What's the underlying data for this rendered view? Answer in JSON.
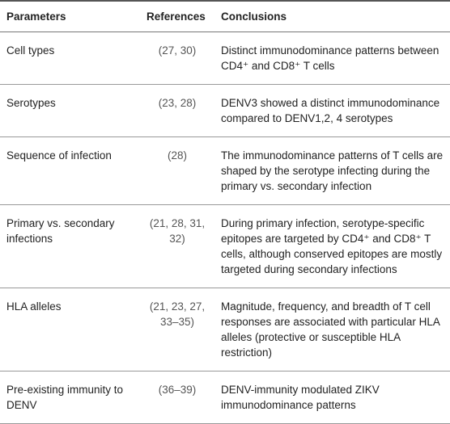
{
  "table": {
    "header": [
      "Parameters",
      "References",
      "Conclusions"
    ],
    "rows": [
      [
        "Cell types",
        "(27, 30)",
        "Distinct immunodominance patterns between CD4⁺ and CD8⁺ T cells"
      ],
      [
        "Serotypes",
        "(23, 28)",
        "DENV3 showed a distinct immunodominance compared to DENV1,2, 4 serotypes"
      ],
      [
        "Sequence of infection",
        "(28)",
        "The immunodominance patterns of T cells are shaped by the serotype infecting during the primary vs. secondary infection"
      ],
      [
        "Primary vs. secondary infections",
        "(21, 28, 31, 32)",
        "During primary infection, serotype-specific epitopes are targeted by CD4⁺ and CD8⁺ T cells, although conserved epitopes are mostly targeted during secondary infections"
      ],
      [
        "HLA alleles",
        "(21, 23, 27, 33–35)",
        "Magnitude, frequency, and breadth of T cell responses are associated with particular HLA alleles (protective or susceptible HLA restriction)"
      ],
      [
        "Pre-existing immunity to DENV",
        "(36–39)",
        "DENV-immunity modulated ZIKV immunodominance patterns"
      ]
    ]
  }
}
